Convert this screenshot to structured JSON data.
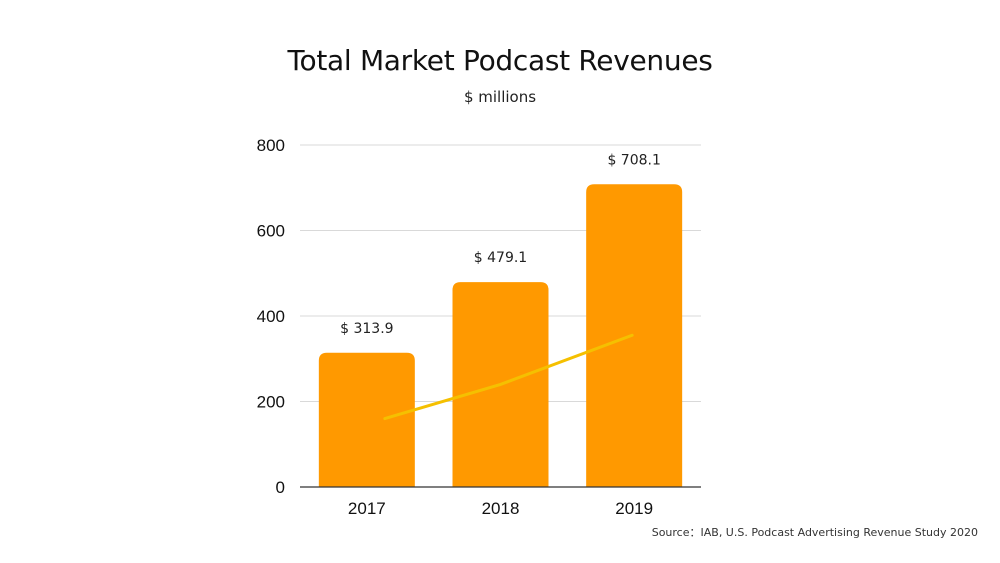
{
  "chart_data": {
    "type": "bar",
    "title": "Total Market Podcast Revenues",
    "subtitle": "$ millions",
    "categories": [
      "2017",
      "2018",
      "2019"
    ],
    "series": [
      {
        "values": [
          313.9,
          479.1,
          708.1
        ],
        "data_labels": [
          "$ 313.9",
          "$ 479.1",
          "$ 708.1"
        ]
      }
    ],
    "trend_line": {
      "type": "line",
      "values": [
        160,
        240,
        355
      ]
    },
    "ylim": [
      0,
      800
    ],
    "yticks": [
      0,
      200,
      400,
      600,
      800
    ],
    "grid": true,
    "legend": "none"
  },
  "colors": {
    "bar": "#FF9900",
    "trend": "#F5C000",
    "grid": "#D9D9D9",
    "axis": "#333333"
  },
  "source": "Source：IAB, U.S. Podcast Advertising Revenue Study 2020"
}
